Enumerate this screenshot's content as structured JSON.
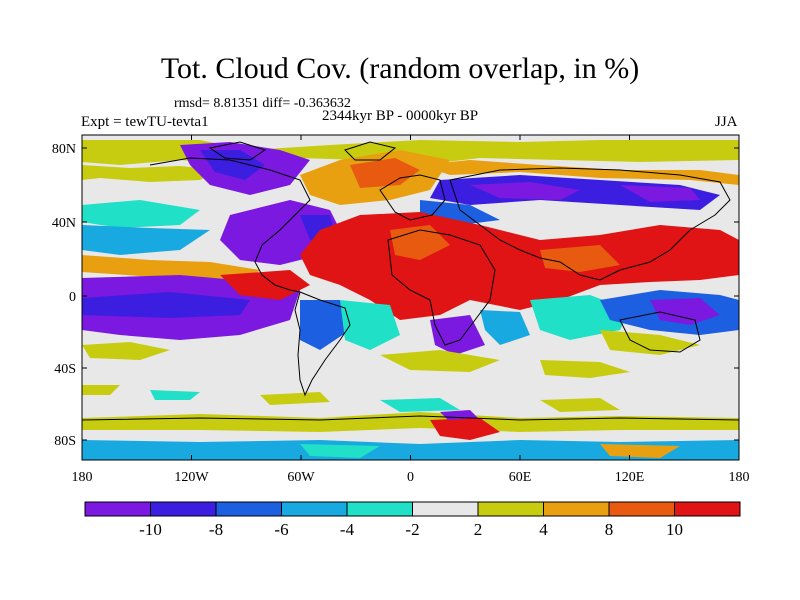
{
  "title": "Tot. Cloud Cov. (random overlap, in %)",
  "stats": "rmsd= 8.81351  diff= -0.363632",
  "period": "2344kyr BP - 0000kyr BP",
  "experiment": "Expt = tewTU-tevta1",
  "season": "JJA",
  "map": {
    "lat_labels": [
      "80N",
      "40N",
      "0",
      "40S",
      "80S"
    ],
    "lon_labels": [
      "180",
      "120W",
      "60W",
      "0",
      "60E",
      "120E",
      "180"
    ]
  },
  "colorbar": {
    "labels": [
      "-10",
      "-8",
      "-6",
      "-4",
      "-2",
      "2",
      "4",
      "8",
      "10"
    ],
    "colors": [
      "#7b19e0",
      "#3c1ee0",
      "#1c5fe0",
      "#18a9e0",
      "#20e0c8",
      "#e8e8e8",
      "#c8cc10",
      "#e8a010",
      "#e85a10",
      "#e01414"
    ]
  },
  "field_colors": {
    "neutral": "#e8e8e8",
    "strong_negative": "#7b19e0",
    "negative": "#3c1ee0",
    "moderate_negative": "#1c5fe0",
    "weak_negative": "#18a9e0",
    "slight_negative": "#20e0c8",
    "slight_positive": "#c8cc10",
    "positive": "#e8a010",
    "moderate_positive": "#e85a10",
    "strong_positive": "#e01414"
  }
}
